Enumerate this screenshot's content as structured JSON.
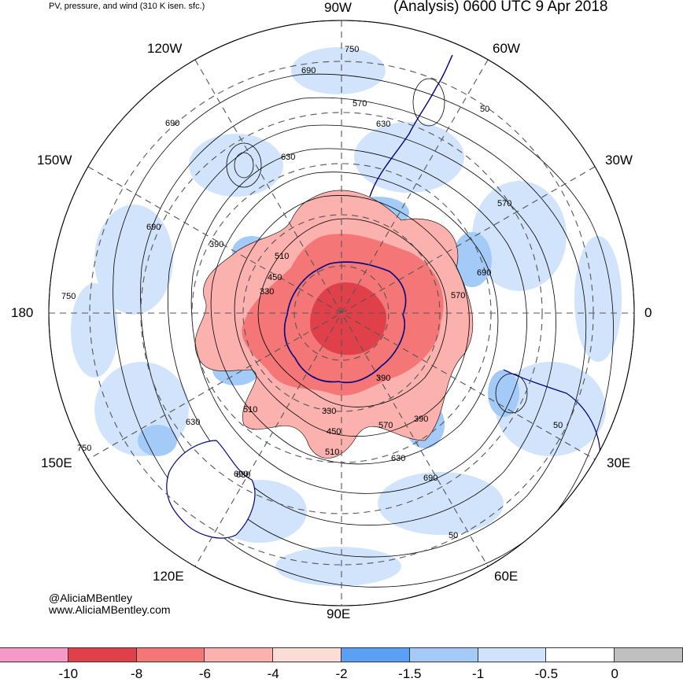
{
  "header": {
    "product": "PV, pressure, and wind (310 K isen. sfc.)",
    "valid": "(Analysis) 0600 UTC 9 Apr 2018"
  },
  "longitudes": {
    "n": "90W",
    "nw": "120W",
    "ne": "60W",
    "wnw": "150W",
    "ene": "30W",
    "w": "180",
    "e": "0",
    "wsw": "150E",
    "ese": "30E",
    "sw": "120E",
    "se": "60E",
    "s": "90E"
  },
  "contour_labels": [
    "750",
    "690",
    "570",
    "630",
    "690",
    "630",
    "570",
    "690",
    "390",
    "510",
    "450",
    "330",
    "750",
    "690",
    "570",
    "390",
    "390",
    "630",
    "510",
    "330",
    "450",
    "570",
    "510",
    "750",
    "630",
    "690",
    "630",
    "690",
    "50",
    "50",
    "50"
  ],
  "credits": {
    "handle": "@AliciaMBentley",
    "site": "www.AliciaMBentley.com"
  },
  "colorbar": {
    "colors": [
      "#f799c6",
      "#e0404a",
      "#f47676",
      "#fbb1ad",
      "#fcdcd6",
      "#5aa0f4",
      "#a4cbf7",
      "#cfe3fb",
      "#ffffff",
      "#c0c0c0"
    ],
    "tick_labels": [
      "-10",
      "-8",
      "-6",
      "-4",
      "-2",
      "-1.5",
      "-1",
      "-0.5",
      "0"
    ]
  }
}
